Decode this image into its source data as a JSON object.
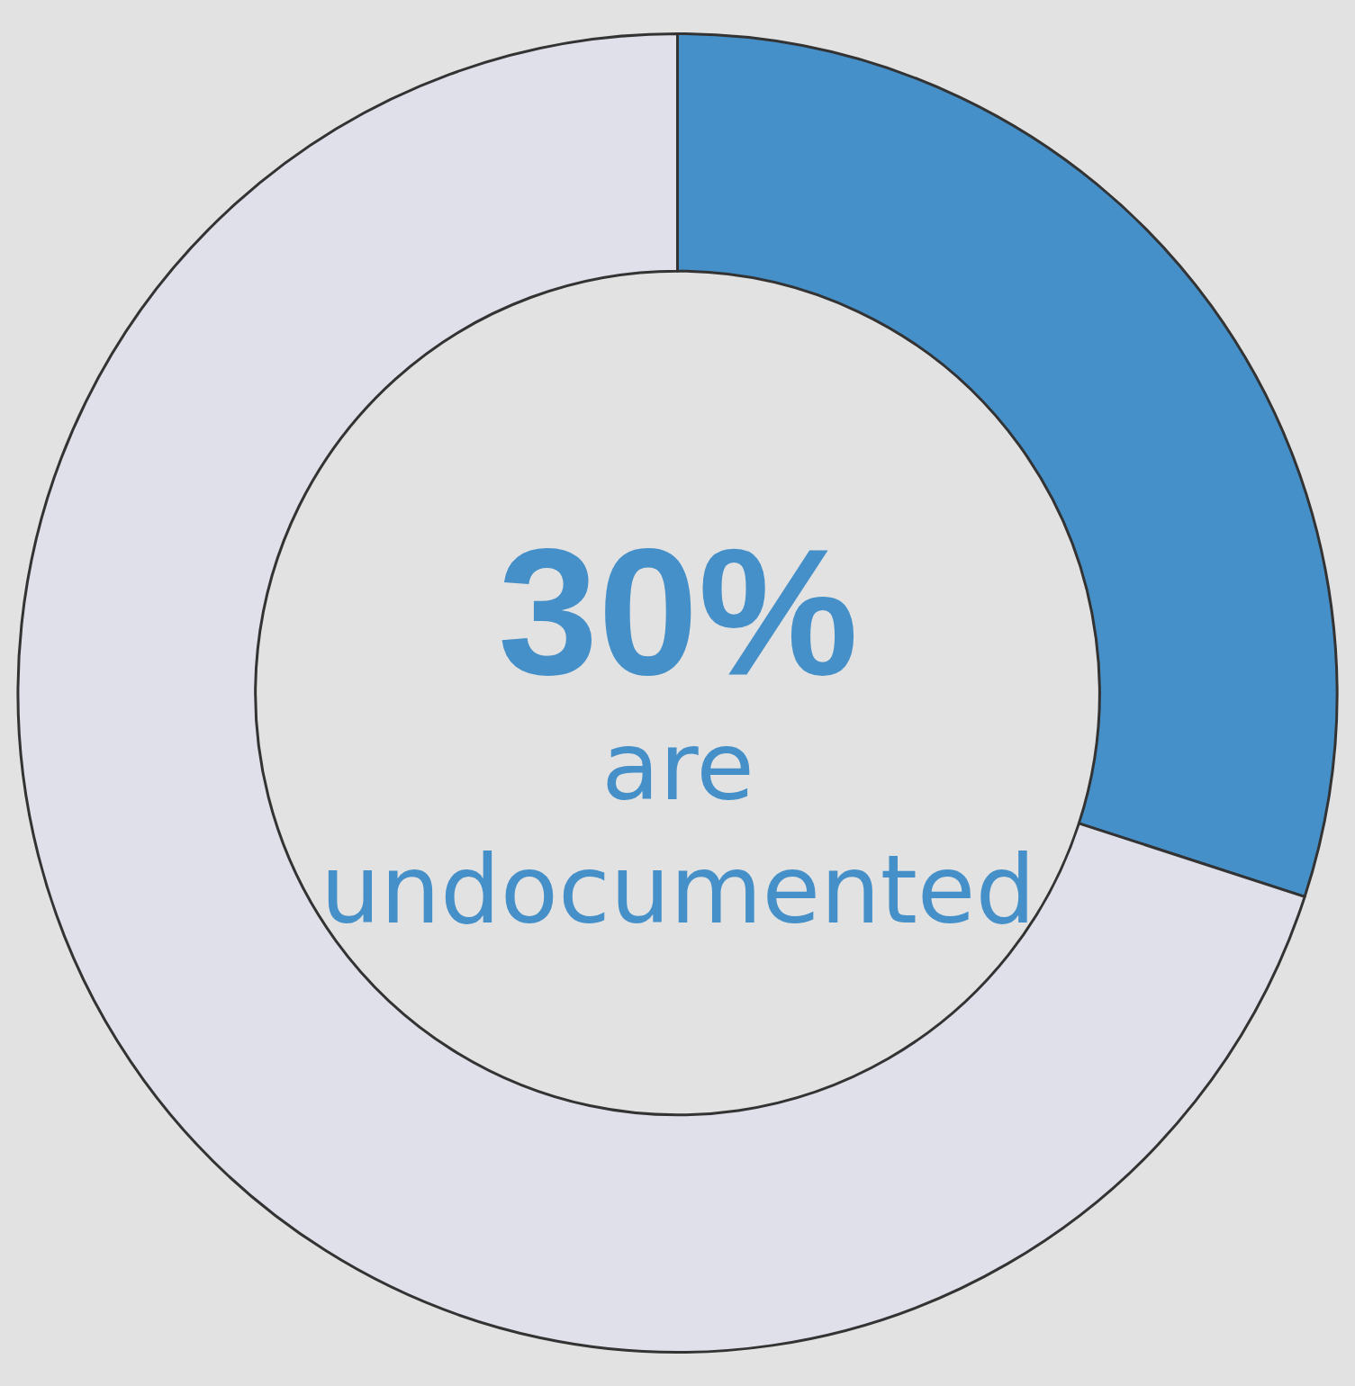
{
  "chart_data": {
    "type": "donut",
    "categories": [
      null,
      null
    ],
    "values": [
      30,
      70
    ],
    "colors": [
      "#4590c8",
      "#dfe0ea"
    ],
    "annotations": [
      "30%",
      "are undocumented"
    ]
  }
}
